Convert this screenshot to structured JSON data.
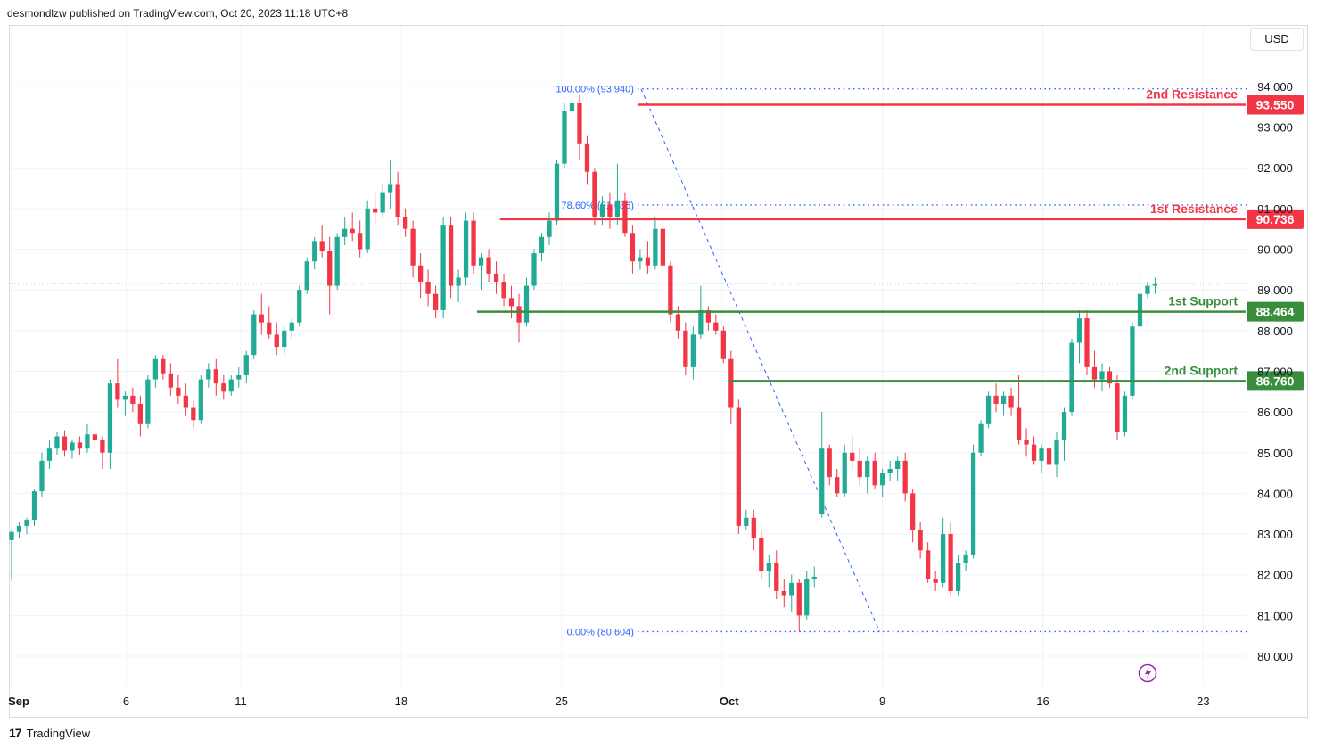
{
  "publisher_text": "desmondlzw published on TradingView.com, Oct 20, 2023 11:18 UTC+8",
  "currency": "USD",
  "footer_brand": "TradingView",
  "footer_logo": "17",
  "colors": {
    "up": "#22ab94",
    "down": "#f23645",
    "resistance": "#f23645",
    "support": "#388e3c",
    "fib": "#2962ff",
    "grid": "#f0f3fa",
    "price_line": "#089981"
  },
  "chart_data": {
    "type": "candlestick",
    "ylim": [
      79.5,
      94.6
    ],
    "y_ticks": [
      "80.000",
      "81.000",
      "82.000",
      "83.000",
      "84.000",
      "85.000",
      "86.000",
      "87.000",
      "88.000",
      "89.000",
      "90.000",
      "91.000",
      "92.000",
      "93.000",
      "94.000"
    ],
    "x_ticks": [
      {
        "label": "Sep",
        "date": "2023-09-01"
      },
      {
        "label": "6",
        "date": "2023-09-06"
      },
      {
        "label": "11",
        "date": "2023-09-11"
      },
      {
        "label": "18",
        "date": "2023-09-18"
      },
      {
        "label": "25",
        "date": "2023-09-25"
      },
      {
        "label": "Oct",
        "date": "2023-10-02"
      },
      {
        "label": "9",
        "date": "2023-10-09"
      },
      {
        "label": "16",
        "date": "2023-10-16"
      },
      {
        "label": "23",
        "date": "2023-10-23"
      }
    ],
    "last_price": 89.15,
    "levels": [
      {
        "name": "2nd Resistance",
        "value": 93.55,
        "label": "93.550",
        "kind": "resistance",
        "from_date": "2023-09-28"
      },
      {
        "name": "1st Resistance",
        "value": 90.736,
        "label": "90.736",
        "kind": "resistance",
        "from_date": "2023-09-22"
      },
      {
        "name": "1st Support",
        "value": 88.464,
        "label": "88.464",
        "kind": "support",
        "from_date": "2023-09-21"
      },
      {
        "name": "2nd Support",
        "value": 86.76,
        "label": "86.760",
        "kind": "support",
        "from_date": "2023-10-02"
      }
    ],
    "fib_levels": [
      {
        "label": "100.00% (93.940)",
        "value": 93.94
      },
      {
        "label": "78.60% (91.086)",
        "value": 91.086
      },
      {
        "label": "0.00% (80.604)",
        "value": 80.604
      }
    ],
    "fib_trend": {
      "from": {
        "date": "2023-09-28",
        "value": 93.94
      },
      "to": {
        "date": "2023-10-06",
        "value": 80.604
      }
    },
    "candles_4h": [
      [
        82.85,
        83.1,
        81.85,
        83.05
      ],
      [
        83.05,
        83.3,
        82.9,
        83.2
      ],
      [
        83.2,
        83.4,
        83.0,
        83.35
      ],
      [
        83.35,
        84.1,
        83.2,
        84.05
      ],
      [
        84.05,
        85.0,
        83.9,
        84.8
      ],
      [
        84.8,
        85.3,
        84.6,
        85.1
      ],
      [
        85.1,
        85.5,
        84.95,
        85.4
      ],
      [
        85.4,
        85.55,
        84.9,
        85.05
      ],
      [
        85.05,
        85.3,
        84.85,
        85.25
      ],
      [
        85.25,
        85.4,
        84.95,
        85.1
      ],
      [
        85.1,
        85.7,
        85.0,
        85.45
      ],
      [
        85.45,
        85.6,
        85.1,
        85.3
      ],
      [
        85.3,
        85.4,
        84.6,
        85.0
      ],
      [
        85.0,
        86.8,
        84.6,
        86.7
      ],
      [
        86.7,
        87.3,
        86.1,
        86.3
      ],
      [
        86.3,
        86.5,
        85.9,
        86.4
      ],
      [
        86.4,
        86.6,
        86.0,
        86.2
      ],
      [
        86.2,
        86.4,
        85.4,
        85.7
      ],
      [
        85.7,
        86.9,
        85.6,
        86.8
      ],
      [
        86.8,
        87.4,
        86.6,
        87.3
      ],
      [
        87.3,
        87.4,
        86.8,
        86.95
      ],
      [
        86.95,
        87.2,
        86.4,
        86.6
      ],
      [
        86.6,
        86.9,
        86.2,
        86.4
      ],
      [
        86.4,
        86.7,
        85.9,
        86.1
      ],
      [
        86.1,
        86.3,
        85.6,
        85.8
      ],
      [
        85.8,
        86.9,
        85.7,
        86.8
      ],
      [
        86.8,
        87.2,
        86.6,
        87.05
      ],
      [
        87.05,
        87.3,
        86.4,
        86.7
      ],
      [
        86.7,
        86.9,
        86.3,
        86.5
      ],
      [
        86.5,
        86.9,
        86.4,
        86.8
      ],
      [
        86.8,
        87.1,
        86.6,
        86.9
      ],
      [
        86.9,
        87.5,
        86.7,
        87.4
      ],
      [
        87.4,
        88.5,
        87.3,
        88.4
      ],
      [
        88.4,
        88.9,
        87.9,
        88.2
      ],
      [
        88.2,
        88.6,
        87.8,
        87.9
      ],
      [
        87.9,
        88.2,
        87.4,
        87.6
      ],
      [
        87.6,
        88.1,
        87.4,
        88.0
      ],
      [
        88.0,
        88.3,
        87.8,
        88.2
      ],
      [
        88.2,
        89.1,
        88.1,
        89.0
      ],
      [
        89.0,
        89.8,
        88.9,
        89.7
      ],
      [
        89.7,
        90.3,
        89.5,
        90.2
      ],
      [
        90.2,
        90.6,
        89.8,
        89.95
      ],
      [
        89.95,
        90.3,
        88.4,
        89.1
      ],
      [
        89.1,
        90.4,
        89.0,
        90.3
      ],
      [
        90.3,
        90.8,
        90.1,
        90.5
      ],
      [
        90.5,
        90.9,
        90.2,
        90.4
      ],
      [
        90.4,
        90.7,
        89.8,
        90.0
      ],
      [
        90.0,
        91.2,
        89.9,
        91.0
      ],
      [
        91.0,
        91.4,
        90.6,
        90.9
      ],
      [
        90.9,
        91.6,
        90.8,
        91.4
      ],
      [
        91.4,
        92.2,
        91.0,
        91.6
      ],
      [
        91.6,
        91.9,
        90.6,
        90.8
      ],
      [
        90.8,
        91.0,
        90.3,
        90.5
      ],
      [
        90.5,
        90.7,
        89.3,
        89.6
      ],
      [
        89.6,
        89.9,
        88.8,
        89.2
      ],
      [
        89.2,
        89.5,
        88.6,
        88.9
      ],
      [
        88.9,
        89.1,
        88.3,
        88.5
      ],
      [
        88.5,
        90.8,
        88.3,
        90.6
      ],
      [
        90.6,
        90.8,
        88.8,
        89.1
      ],
      [
        89.1,
        89.5,
        88.7,
        89.3
      ],
      [
        89.3,
        90.9,
        89.1,
        90.7
      ],
      [
        90.7,
        90.9,
        89.4,
        89.6
      ],
      [
        89.6,
        89.9,
        89.0,
        89.8
      ],
      [
        89.8,
        90.0,
        89.2,
        89.4
      ],
      [
        89.4,
        89.7,
        88.9,
        89.2
      ],
      [
        89.2,
        89.4,
        88.6,
        88.8
      ],
      [
        88.8,
        89.1,
        88.3,
        88.6
      ],
      [
        88.6,
        88.9,
        87.7,
        88.2
      ],
      [
        88.2,
        89.3,
        88.1,
        89.1
      ],
      [
        89.1,
        90.0,
        89.0,
        89.9
      ],
      [
        89.9,
        90.4,
        89.7,
        90.3
      ],
      [
        90.3,
        90.9,
        90.1,
        90.7
      ],
      [
        90.7,
        92.2,
        90.6,
        92.1
      ],
      [
        92.1,
        93.6,
        92.0,
        93.4
      ],
      [
        93.4,
        93.94,
        92.9,
        93.6
      ],
      [
        93.6,
        93.8,
        92.2,
        92.6
      ],
      [
        92.6,
        92.8,
        91.6,
        91.9
      ],
      [
        91.9,
        92.0,
        90.6,
        90.8
      ],
      [
        90.8,
        91.3,
        90.6,
        91.1
      ],
      [
        91.1,
        91.4,
        90.5,
        90.8
      ],
      [
        90.8,
        92.1,
        90.6,
        91.2
      ],
      [
        91.2,
        91.4,
        90.3,
        90.4
      ],
      [
        90.4,
        90.6,
        89.4,
        89.7
      ],
      [
        89.7,
        90.0,
        89.5,
        89.8
      ],
      [
        89.8,
        90.2,
        89.4,
        89.6
      ],
      [
        89.6,
        90.8,
        89.5,
        90.5
      ],
      [
        90.5,
        90.7,
        89.4,
        89.6
      ],
      [
        89.6,
        89.7,
        88.2,
        88.4
      ],
      [
        88.4,
        88.6,
        87.8,
        88.0
      ],
      [
        88.0,
        88.2,
        86.9,
        87.1
      ],
      [
        87.1,
        88.1,
        86.8,
        87.9
      ],
      [
        87.9,
        89.1,
        87.8,
        88.5
      ],
      [
        88.5,
        88.6,
        88.0,
        88.2
      ],
      [
        88.2,
        88.4,
        87.9,
        88.0
      ],
      [
        88.0,
        88.1,
        87.2,
        87.3
      ],
      [
        87.3,
        87.5,
        85.7,
        86.1
      ],
      [
        86.1,
        86.3,
        83.0,
        83.2
      ],
      [
        83.2,
        83.6,
        83.1,
        83.4
      ],
      [
        83.4,
        83.6,
        82.6,
        82.9
      ],
      [
        82.9,
        83.1,
        81.9,
        82.1
      ],
      [
        82.1,
        82.5,
        81.7,
        82.3
      ],
      [
        82.3,
        82.6,
        81.4,
        81.6
      ],
      [
        81.6,
        81.9,
        81.2,
        81.5
      ],
      [
        81.5,
        82.0,
        81.1,
        81.8
      ],
      [
        81.8,
        81.9,
        80.604,
        81.0
      ],
      [
        81.0,
        82.1,
        80.9,
        81.9
      ],
      [
        81.9,
        82.2,
        81.7,
        81.95
      ],
      [
        83.5,
        86.0,
        83.4,
        85.1
      ],
      [
        85.1,
        85.2,
        84.2,
        84.4
      ],
      [
        84.4,
        84.6,
        83.9,
        84.0
      ],
      [
        84.0,
        85.2,
        83.9,
        85.0
      ],
      [
        85.0,
        85.4,
        84.6,
        84.8
      ],
      [
        84.8,
        85.1,
        84.2,
        84.4
      ],
      [
        84.4,
        84.9,
        84.0,
        84.8
      ],
      [
        84.8,
        85.0,
        84.1,
        84.2
      ],
      [
        84.2,
        84.6,
        83.9,
        84.5
      ],
      [
        84.5,
        84.8,
        84.3,
        84.6
      ],
      [
        84.6,
        84.9,
        84.3,
        84.8
      ],
      [
        84.8,
        85.0,
        83.8,
        84.0
      ],
      [
        84.0,
        84.1,
        82.8,
        83.1
      ],
      [
        83.1,
        83.3,
        82.4,
        82.6
      ],
      [
        82.6,
        82.8,
        81.8,
        81.9
      ],
      [
        81.9,
        82.1,
        81.6,
        81.8
      ],
      [
        81.8,
        83.4,
        81.7,
        83.0
      ],
      [
        83.0,
        83.3,
        81.5,
        81.6
      ],
      [
        81.6,
        82.5,
        81.5,
        82.3
      ],
      [
        82.3,
        82.6,
        82.1,
        82.5
      ],
      [
        82.5,
        85.2,
        82.4,
        85.0
      ],
      [
        85.0,
        85.8,
        84.9,
        85.7
      ],
      [
        85.7,
        86.5,
        85.6,
        86.4
      ],
      [
        86.4,
        86.7,
        86.0,
        86.2
      ],
      [
        86.2,
        86.5,
        85.9,
        86.4
      ],
      [
        86.4,
        86.6,
        85.9,
        86.1
      ],
      [
        86.1,
        86.9,
        85.2,
        85.3
      ],
      [
        85.3,
        85.6,
        84.9,
        85.2
      ],
      [
        85.2,
        85.4,
        84.7,
        84.8
      ],
      [
        84.8,
        85.2,
        84.5,
        85.1
      ],
      [
        85.1,
        85.4,
        84.6,
        84.7
      ],
      [
        84.7,
        85.5,
        84.4,
        85.3
      ],
      [
        85.3,
        86.1,
        84.8,
        86.0
      ],
      [
        86.0,
        87.8,
        85.9,
        87.7
      ],
      [
        87.7,
        88.5,
        87.2,
        88.3
      ],
      [
        88.3,
        88.5,
        86.9,
        87.1
      ],
      [
        87.1,
        87.5,
        86.6,
        86.8
      ],
      [
        86.8,
        87.2,
        86.5,
        87.0
      ],
      [
        87.0,
        87.1,
        86.6,
        86.7
      ],
      [
        86.7,
        86.9,
        85.3,
        85.5
      ],
      [
        85.5,
        86.5,
        85.4,
        86.4
      ],
      [
        86.4,
        88.2,
        86.3,
        88.1
      ],
      [
        88.1,
        89.4,
        88.0,
        88.9
      ],
      [
        88.9,
        89.2,
        88.8,
        89.1
      ],
      [
        89.1,
        89.3,
        88.9,
        89.15
      ]
    ],
    "annotations": []
  }
}
